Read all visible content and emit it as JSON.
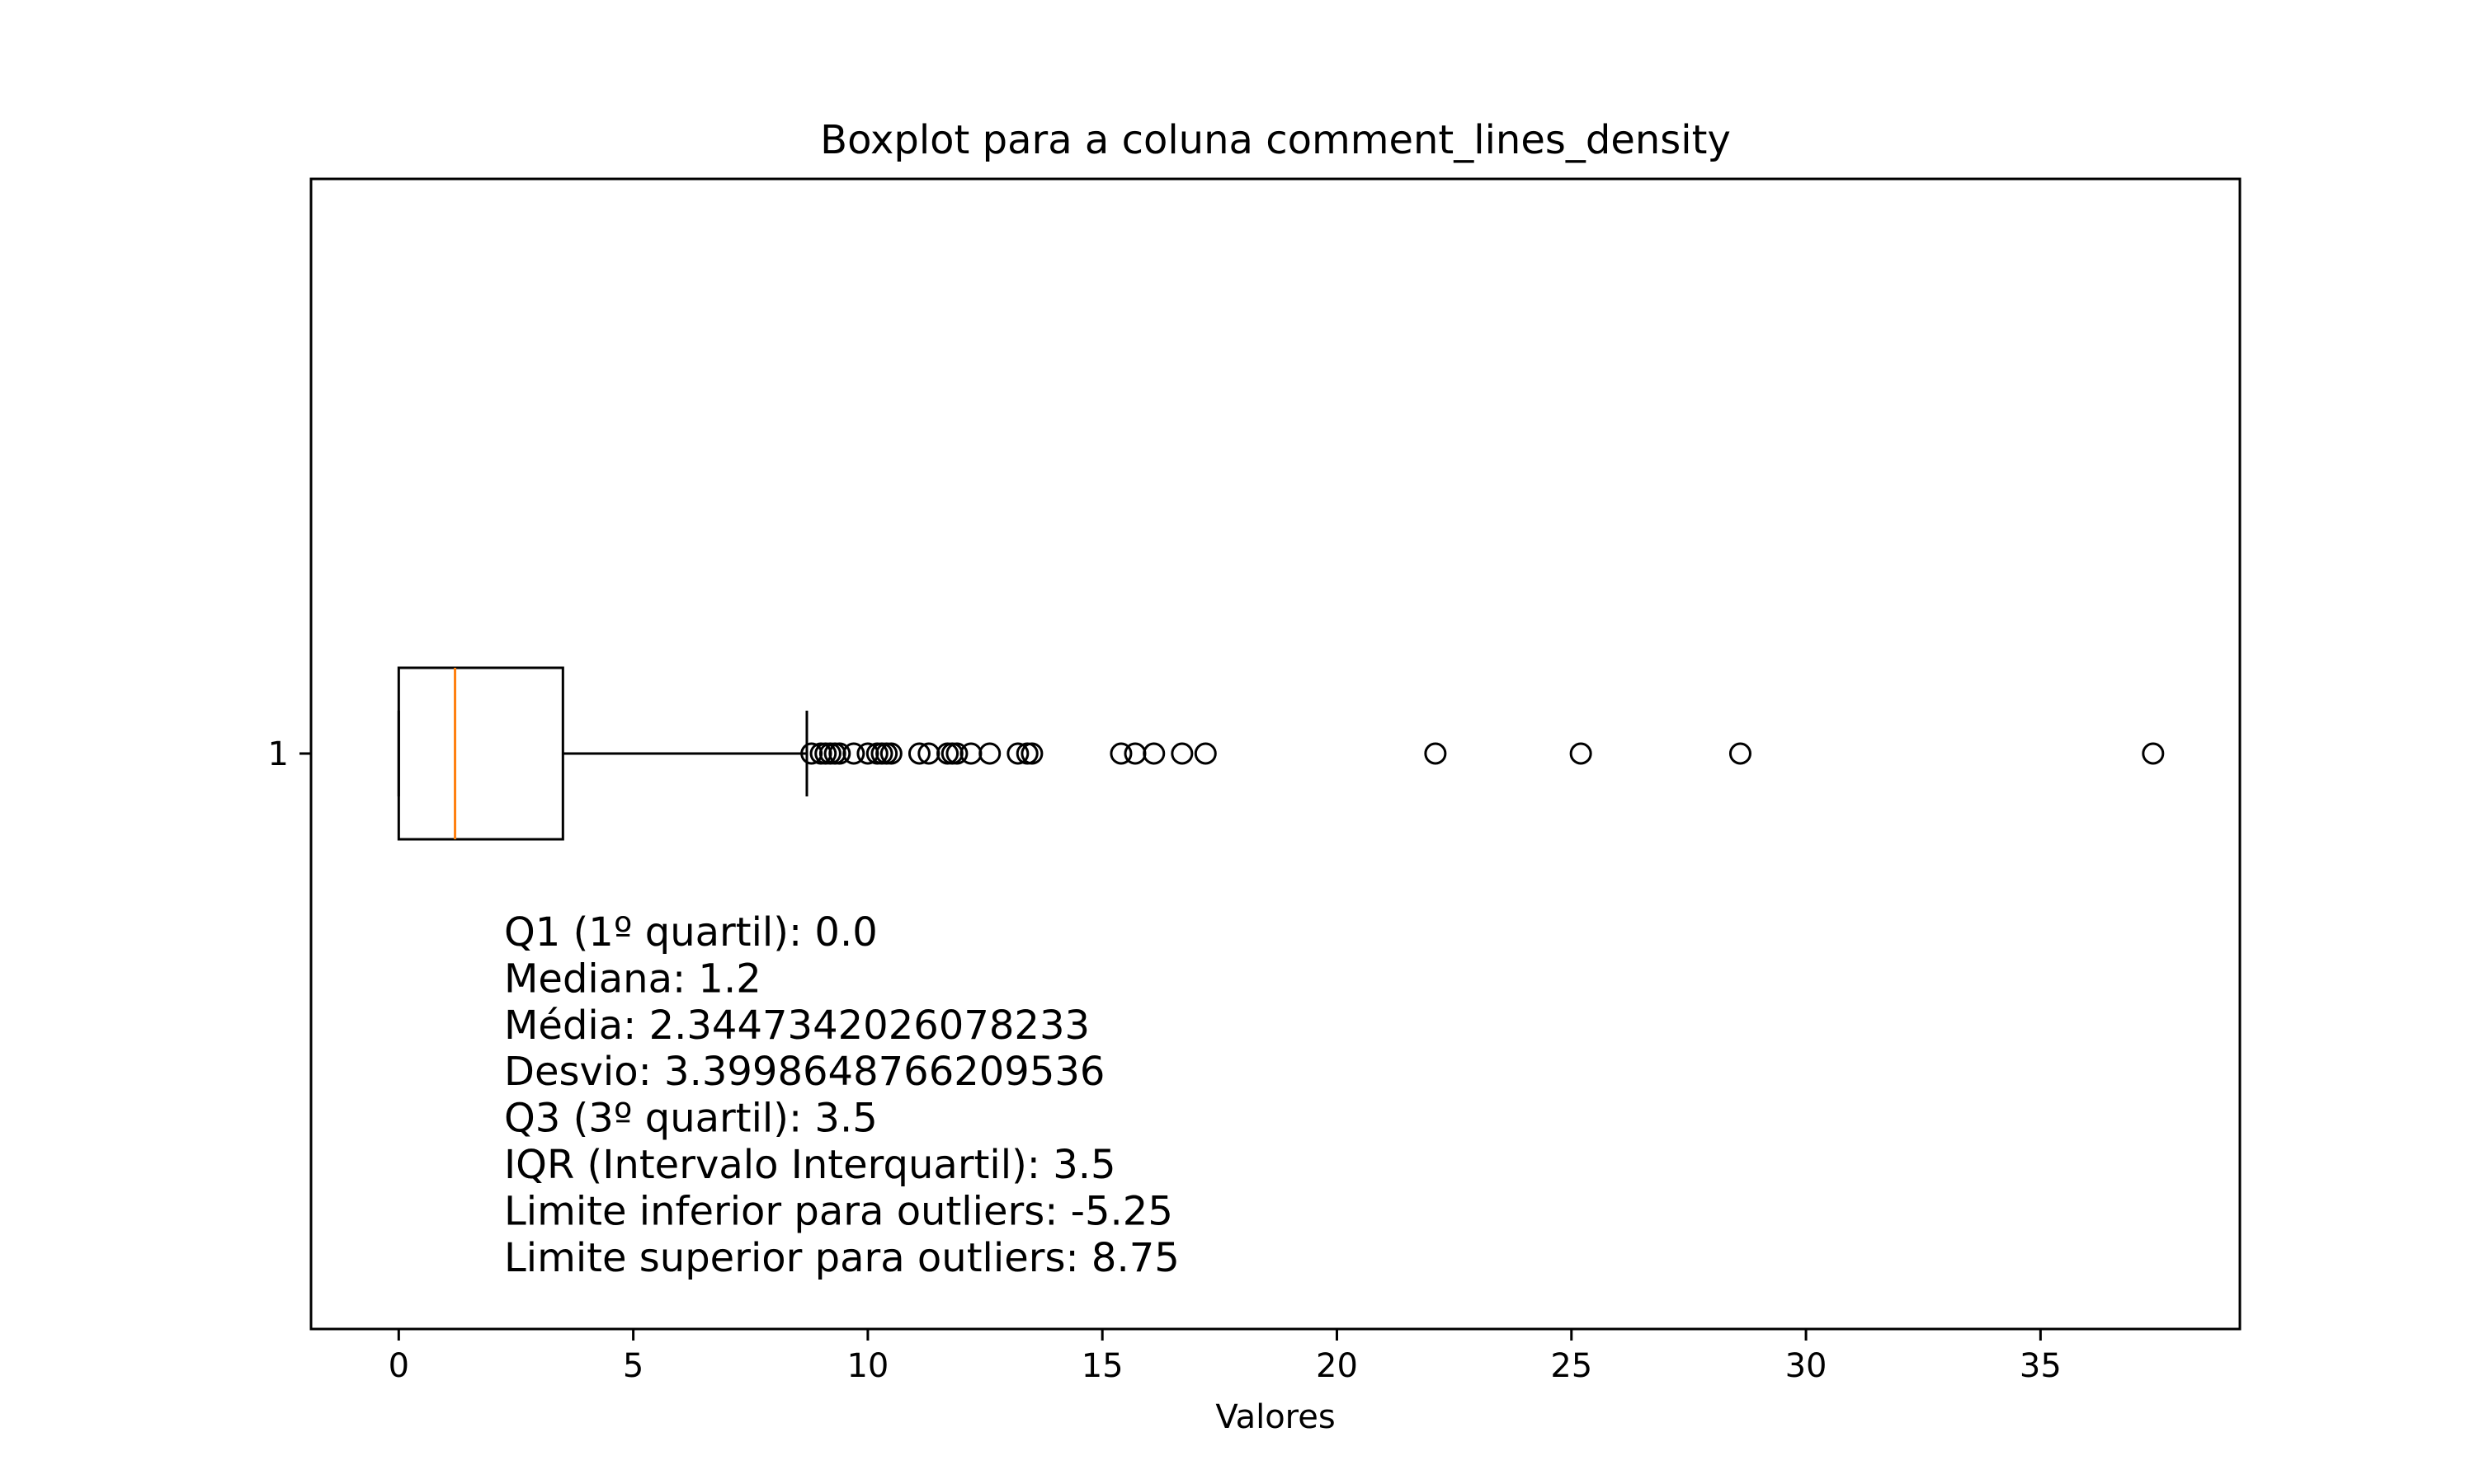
{
  "chart_data": {
    "type": "boxplot",
    "orientation": "horizontal",
    "title": "Boxplot para a coluna comment_lines_density",
    "xlabel": "Valores",
    "ylabel": "",
    "xlim": [
      -1.87,
      39.25
    ],
    "xticks": [
      0,
      5,
      10,
      15,
      20,
      25,
      30,
      35
    ],
    "ytick_labels": [
      "1"
    ],
    "grid": false,
    "box": {
      "name": "1",
      "whisker_low": 0.0,
      "q1": 0.0,
      "median": 1.2,
      "q3": 3.5,
      "whisker_high": 8.7,
      "outliers": [
        8.8,
        9.0,
        9.1,
        9.2,
        9.3,
        9.4,
        9.7,
        10.0,
        10.2,
        10.3,
        10.4,
        10.5,
        11.1,
        11.3,
        11.7,
        11.8,
        11.9,
        12.2,
        12.6,
        13.2,
        13.4,
        13.5,
        15.4,
        15.7,
        16.1,
        16.7,
        17.2,
        22.1,
        25.2,
        28.6,
        37.4
      ]
    },
    "annotations": [
      "Q1 (1º quartil): 0.0",
      "Mediana: 1.2",
      "Média: 2.3447342026078233",
      "Desvio: 3.3998648766209536",
      "Q3 (3º quartil): 3.5",
      "IQR (Intervalo Interquartil): 3.5",
      "Limite inferior para outliers: -5.25",
      "Limite superior para outliers: 8.75"
    ],
    "colors": {
      "median": "#ff7f0e",
      "box": "#000000",
      "axes": "#000000",
      "background": "#ffffff"
    }
  }
}
